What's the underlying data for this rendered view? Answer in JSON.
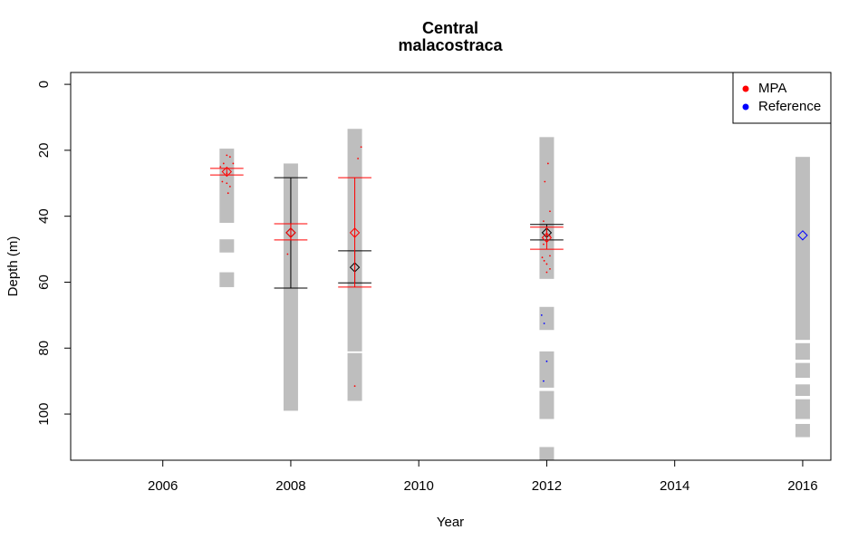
{
  "chart_data": {
    "type": "scatter",
    "title": "Central",
    "subtitle": "malacostraca",
    "x_label": "Year",
    "y_label": "Depth (m)",
    "xlim": [
      2004.56,
      2016.44
    ],
    "xticks": [
      2006,
      2008,
      2010,
      2012,
      2014,
      2016
    ],
    "ylim": [
      -3.6,
      114
    ],
    "yticks": [
      0,
      20,
      40,
      60,
      80,
      100
    ],
    "y_inverted": true,
    "legend_position": "topright",
    "depth_ranges": {
      "color": "#bebebe",
      "x": [
        2007,
        2007,
        2007,
        2008,
        2009,
        2009,
        2012,
        2012,
        2012,
        2012,
        2012,
        2016,
        2016,
        2016,
        2016,
        2016,
        2016
      ],
      "low": [
        19.5,
        47,
        57,
        24,
        13.5,
        81.5,
        16,
        67.5,
        81,
        93,
        110,
        22,
        78.5,
        84.5,
        91,
        95.5,
        103
      ],
      "high": [
        42,
        51,
        61.5,
        99,
        81,
        96,
        59,
        74.5,
        92,
        101.5,
        114,
        77.5,
        83.5,
        89,
        94.5,
        101.5,
        107
      ]
    },
    "series": [
      {
        "name": "MPA",
        "color": "#ff0000",
        "x": [
          2007.0,
          2007.05,
          2006.95,
          2007.1,
          2006.9,
          2007.0,
          2006.93,
          2007.0,
          2007.05,
          2007.02,
          2007.95,
          2009.1,
          2009.05,
          2009.0,
          2012.02,
          2011.97,
          2012.05,
          2011.95,
          2012.0,
          2012.05,
          2011.95,
          2012.05,
          2011.93,
          2011.96,
          2012.0,
          2012.05,
          2012.0
        ],
        "values": [
          21.5,
          22,
          24,
          24,
          25,
          27,
          29.5,
          30,
          31,
          33,
          51.5,
          19,
          22.5,
          91.5,
          24,
          29.5,
          38.5,
          41.5,
          44,
          46,
          48.5,
          52,
          52.5,
          53.5,
          54.5,
          56,
          57
        ]
      },
      {
        "name": "Reference",
        "color": "#0000ff",
        "x": [
          2011.92,
          2011.96,
          2012.0,
          2011.95
        ],
        "values": [
          70,
          72.5,
          84,
          90
        ]
      }
    ],
    "summaries": [
      {
        "color": "#000000",
        "x": [
          2008,
          2009,
          2012
        ],
        "mean": [
          45,
          55.5,
          45
        ],
        "lower": [
          28.3,
          50.5,
          42.5
        ],
        "upper": [
          61.8,
          60.2,
          47.2
        ]
      },
      {
        "color": "#ff0000",
        "x": [
          2007,
          2008,
          2009,
          2012
        ],
        "mean": [
          26.5,
          45,
          45,
          46.5
        ],
        "lower": [
          25.5,
          42.3,
          28.3,
          43.3
        ],
        "upper": [
          27.5,
          47.2,
          61.5,
          50.0
        ]
      },
      {
        "color": "#0000ff",
        "x": [
          2016
        ],
        "mean": [
          45.8
        ]
      }
    ]
  }
}
